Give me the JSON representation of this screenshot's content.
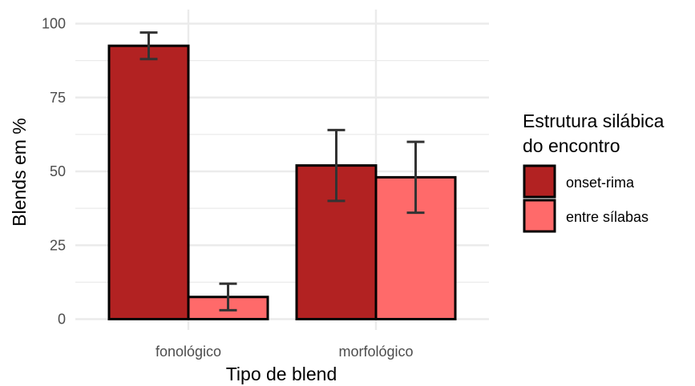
{
  "chart_data": {
    "type": "bar",
    "categories": [
      "fonológico",
      "morfológico"
    ],
    "series": [
      {
        "name": "onset-rima",
        "color": "#B22222",
        "values": [
          92.5,
          52.0
        ],
        "err_low": [
          88.0,
          40.0
        ],
        "err_high": [
          97.0,
          64.0
        ]
      },
      {
        "name": "entre sílabas",
        "color": "#FF6A6A",
        "values": [
          7.5,
          48.0
        ],
        "err_low": [
          3.0,
          36.0
        ],
        "err_high": [
          12.0,
          60.0
        ]
      }
    ],
    "xlabel": "Tipo de blend",
    "ylabel": "Blends em %",
    "ylim": [
      0,
      100
    ],
    "yticks": [
      0,
      25,
      50,
      75,
      100
    ],
    "ytick_labels": [
      "0",
      "25",
      "50",
      "75",
      "100"
    ],
    "error_bars": true,
    "grid": true,
    "legend": {
      "title_lines": [
        "Estrutura silábica",
        "do encontro"
      ],
      "position": "right"
    },
    "colors": {
      "grid": "#ebebeb",
      "bar_outline": "#000000",
      "errorbar": "#333333"
    }
  }
}
